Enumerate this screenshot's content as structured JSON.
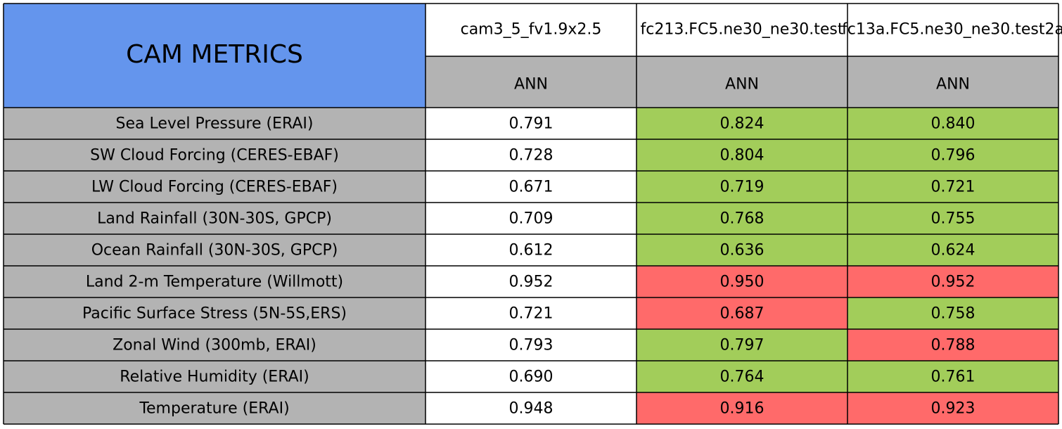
{
  "table": {
    "title": "CAM METRICS",
    "columns": [
      {
        "name": "cam3_5_fv1.9x2.5",
        "season": "ANN"
      },
      {
        "name": "fc213.FC5.ne30_ne30.test",
        "season": "ANN"
      },
      {
        "name": "fc13a.FC5.ne30_ne30.test2a",
        "season": "ANN"
      }
    ],
    "rows": [
      {
        "label": "Sea Level Pressure (ERAI)",
        "values": [
          "0.791",
          "0.824",
          "0.840"
        ],
        "colors": [
          "#ffffff",
          "#a2cd5a",
          "#a2cd5a"
        ]
      },
      {
        "label": "SW Cloud Forcing (CERES-EBAF)",
        "values": [
          "0.728",
          "0.804",
          "0.796"
        ],
        "colors": [
          "#ffffff",
          "#a2cd5a",
          "#a2cd5a"
        ]
      },
      {
        "label": "LW Cloud Forcing (CERES-EBAF)",
        "values": [
          "0.671",
          "0.719",
          "0.721"
        ],
        "colors": [
          "#ffffff",
          "#a2cd5a",
          "#a2cd5a"
        ]
      },
      {
        "label": "Land Rainfall (30N-30S, GPCP)",
        "values": [
          "0.709",
          "0.768",
          "0.755"
        ],
        "colors": [
          "#ffffff",
          "#a2cd5a",
          "#a2cd5a"
        ]
      },
      {
        "label": "Ocean Rainfall (30N-30S, GPCP)",
        "values": [
          "0.612",
          "0.636",
          "0.624"
        ],
        "colors": [
          "#ffffff",
          "#a2cd5a",
          "#a2cd5a"
        ]
      },
      {
        "label": "Land 2-m Temperature (Willmott)",
        "values": [
          "0.952",
          "0.950",
          "0.952"
        ],
        "colors": [
          "#ffffff",
          "#ff6a6a",
          "#ff6a6a"
        ]
      },
      {
        "label": "Pacific Surface Stress (5N-5S,ERS)",
        "values": [
          "0.721",
          "0.687",
          "0.758"
        ],
        "colors": [
          "#ffffff",
          "#ff6a6a",
          "#a2cd5a"
        ]
      },
      {
        "label": "Zonal Wind (300mb, ERAI)",
        "values": [
          "0.793",
          "0.797",
          "0.788"
        ],
        "colors": [
          "#ffffff",
          "#a2cd5a",
          "#ff6a6a"
        ]
      },
      {
        "label": "Relative Humidity (ERAI)",
        "values": [
          "0.690",
          "0.764",
          "0.761"
        ],
        "colors": [
          "#ffffff",
          "#a2cd5a",
          "#a2cd5a"
        ]
      },
      {
        "label": "Temperature (ERAI)",
        "values": [
          "0.948",
          "0.916",
          "0.923"
        ],
        "colors": [
          "#ffffff",
          "#ff6a6a",
          "#ff6a6a"
        ]
      }
    ]
  }
}
